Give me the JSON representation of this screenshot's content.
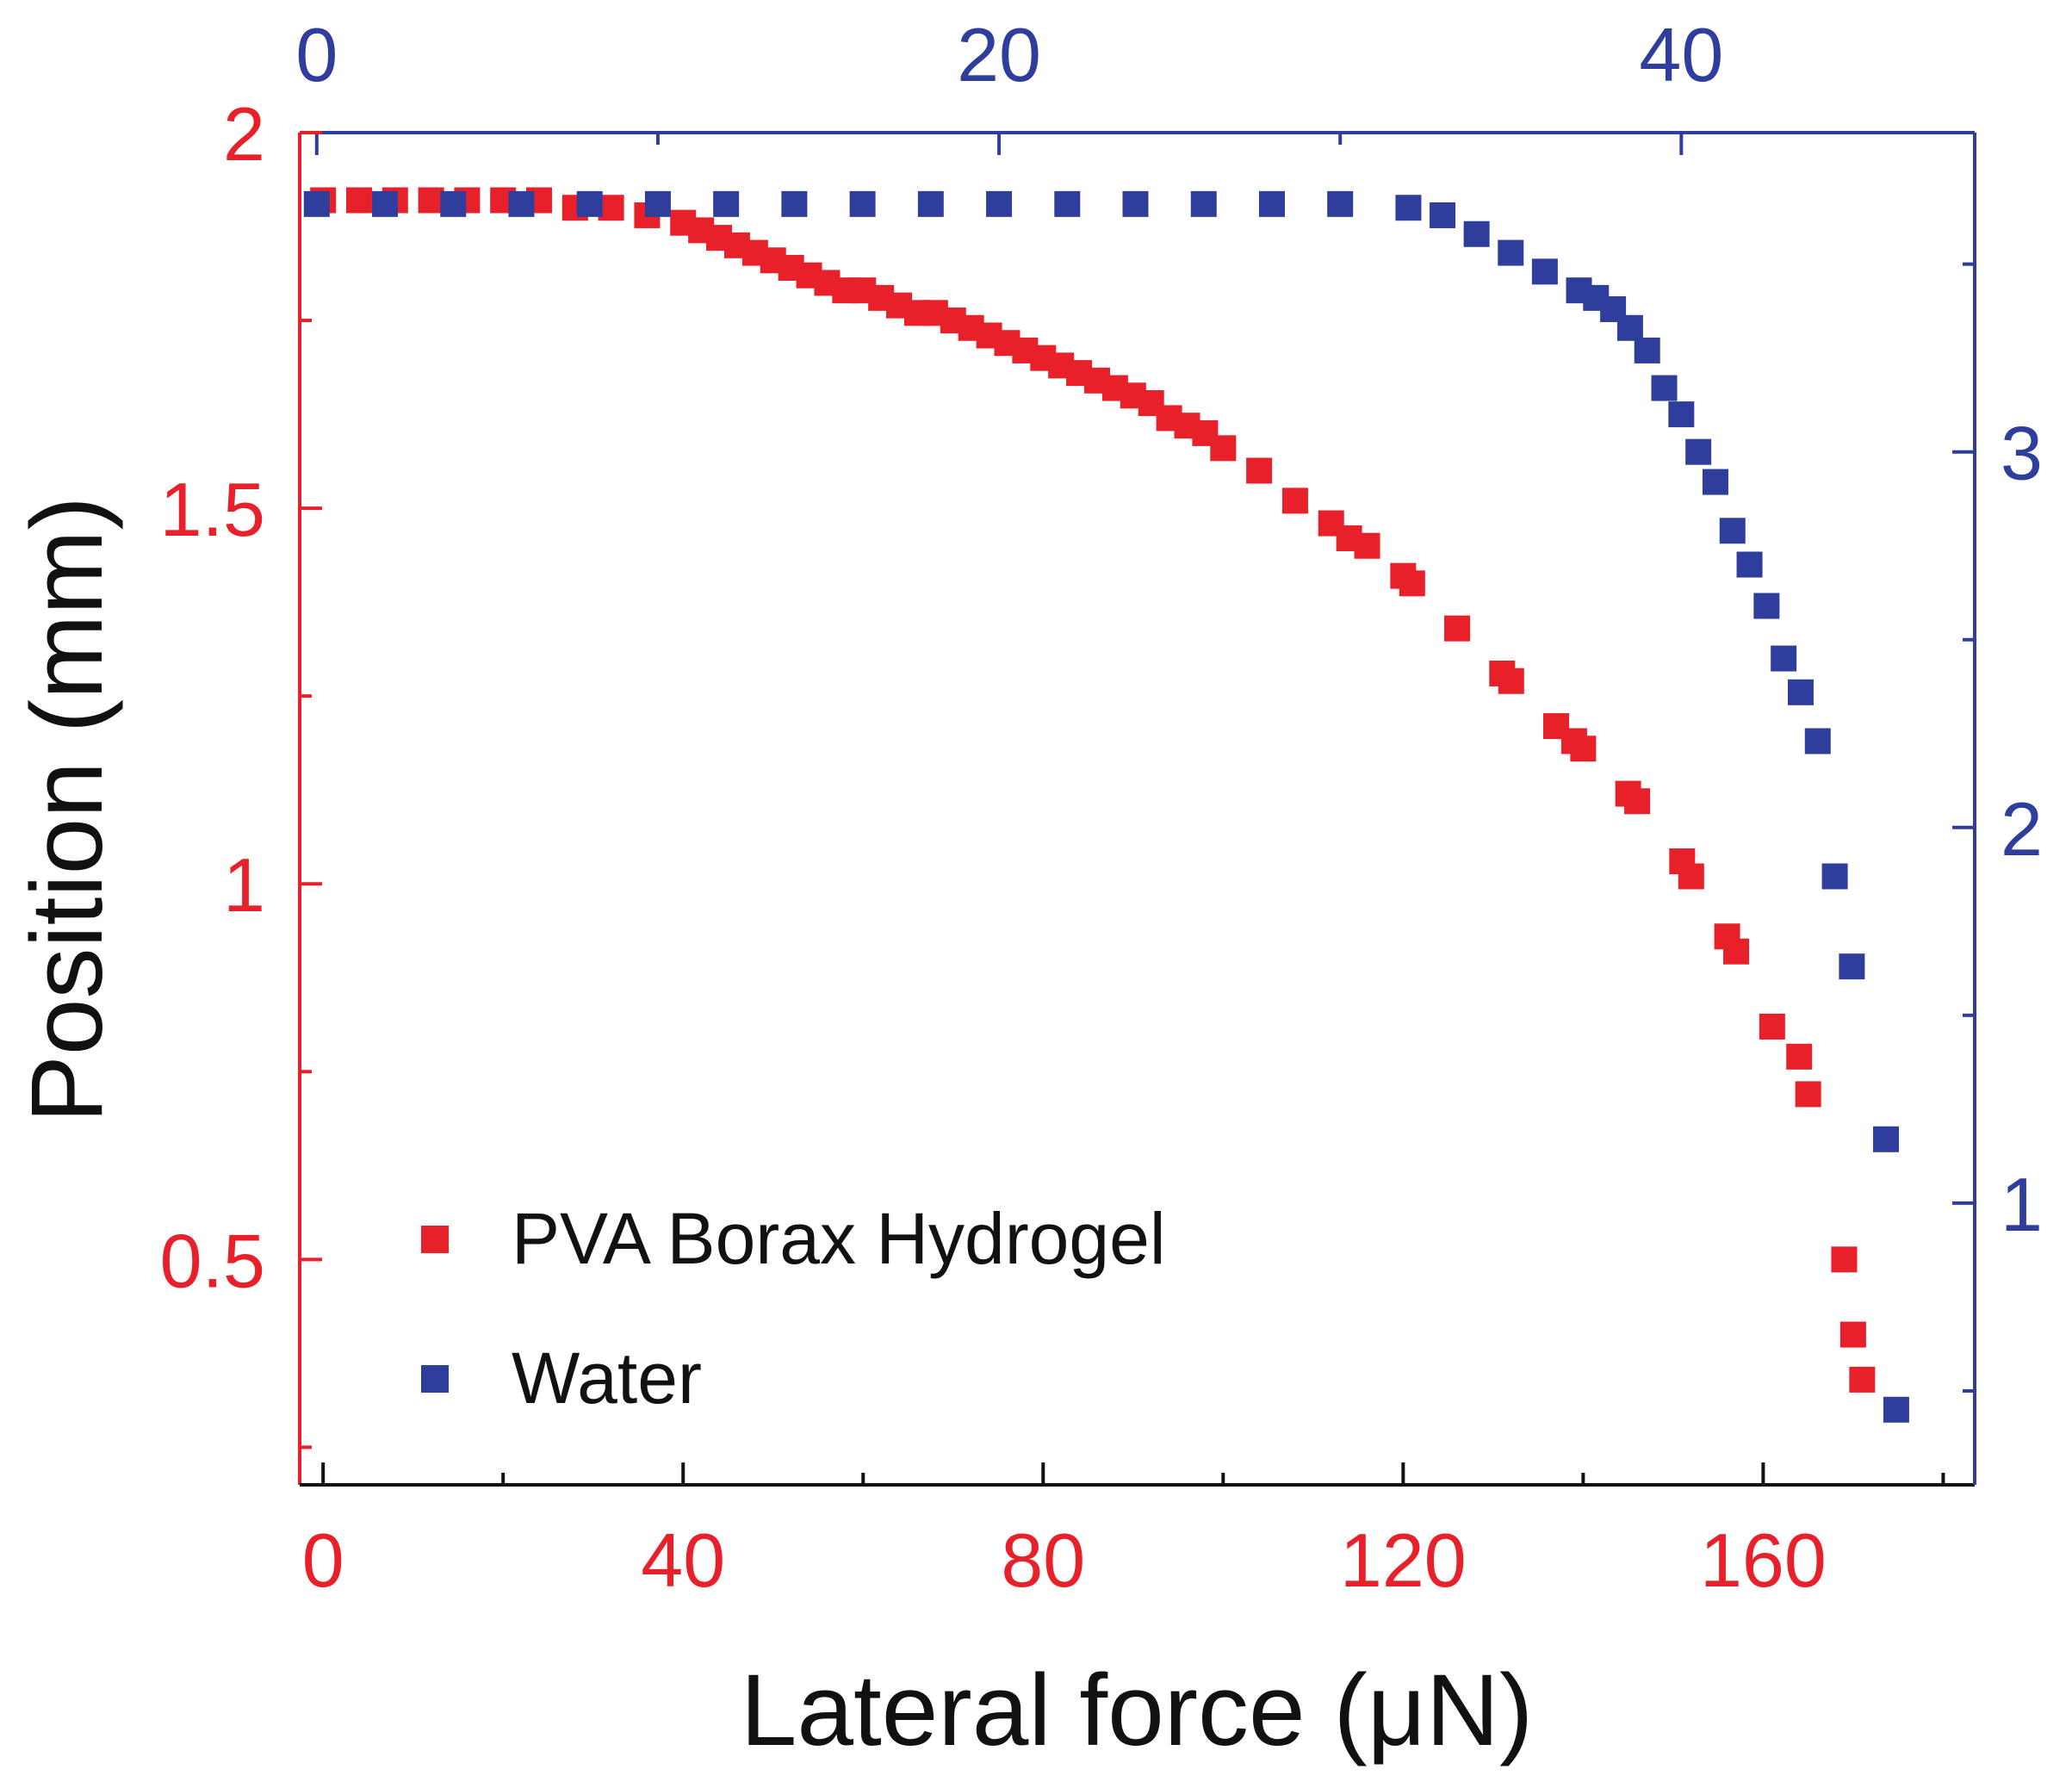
{
  "chart_data": {
    "type": "scatter",
    "title": "",
    "xlabel": "Lateral force (μN)",
    "ylabel": "Position (mm)",
    "axes": {
      "bottom_x": {
        "range": [
          -2.6,
          183.5
        ],
        "ticks": [
          0,
          40,
          80,
          120,
          160
        ],
        "tick_labels": [
          "0",
          "40",
          "80",
          "120",
          "160"
        ],
        "color": "#e8202a"
      },
      "top_x": {
        "range": [
          -0.5,
          48.6
        ],
        "ticks": [
          0,
          20,
          40
        ],
        "tick_labels": [
          "0",
          "20",
          "40"
        ],
        "color": "#2f3d9c"
      },
      "left_y": {
        "range": [
          0.2,
          2.0
        ],
        "ticks": [
          0.5,
          1.0,
          1.5,
          2.0
        ],
        "tick_labels": [
          "0.5",
          "1",
          "1.5",
          "2"
        ],
        "minor_ticks": [
          0.25,
          0.75,
          1.25,
          1.75
        ],
        "color": "#e8202a"
      },
      "right_y": {
        "range": [
          0.25,
          3.85
        ],
        "ticks": [
          1,
          2,
          3
        ],
        "tick_labels": [
          "1",
          "2",
          "3"
        ],
        "minor_ticks": [
          0.5,
          1.5,
          2.5,
          3.5
        ],
        "color": "#2f3d9c"
      }
    },
    "grid": false,
    "legend": {
      "position": "bottom-left"
    },
    "series": [
      {
        "name": "PVA Borax Hydrogel",
        "axes": "bottom-left",
        "color": "#e8202a",
        "x": [
          0,
          4,
          8,
          12,
          16,
          20,
          24,
          28,
          32,
          36,
          40,
          42,
          44,
          46,
          48,
          50,
          52,
          54,
          56,
          58,
          60,
          62,
          64,
          66,
          68,
          70,
          72,
          74,
          76,
          78,
          80,
          82,
          84,
          86,
          88,
          90,
          92,
          94,
          96,
          98,
          100,
          104,
          108,
          112,
          114,
          116,
          120,
          121,
          126,
          131,
          132,
          137,
          139,
          140,
          145,
          146,
          151,
          152,
          156,
          157,
          161,
          164,
          165,
          169,
          170,
          171
        ],
        "y": [
          1.91,
          1.91,
          1.91,
          1.91,
          1.91,
          1.91,
          1.91,
          1.9,
          1.9,
          1.89,
          1.88,
          1.87,
          1.86,
          1.85,
          1.84,
          1.83,
          1.82,
          1.81,
          1.8,
          1.79,
          1.79,
          1.78,
          1.77,
          1.76,
          1.76,
          1.75,
          1.74,
          1.73,
          1.72,
          1.71,
          1.7,
          1.69,
          1.68,
          1.67,
          1.66,
          1.65,
          1.64,
          1.62,
          1.61,
          1.6,
          1.58,
          1.55,
          1.51,
          1.48,
          1.46,
          1.45,
          1.41,
          1.4,
          1.34,
          1.28,
          1.27,
          1.21,
          1.19,
          1.18,
          1.12,
          1.11,
          1.03,
          1.01,
          0.93,
          0.91,
          0.81,
          0.77,
          0.72,
          0.5,
          0.4,
          0.34
        ]
      },
      {
        "name": "Water",
        "axes": "top-right",
        "color": "#2f3d9c",
        "x": [
          0,
          2,
          4,
          6,
          8,
          10,
          12,
          14,
          16,
          18,
          20,
          22,
          24,
          26,
          28,
          30,
          32,
          33,
          34,
          35,
          36,
          37,
          37.5,
          38,
          38.5,
          39,
          39.5,
          40,
          40.5,
          41,
          41.5,
          42,
          42.5,
          43,
          43.5,
          44,
          44.5,
          45,
          46,
          46.3
        ],
        "y": [
          3.66,
          3.66,
          3.66,
          3.66,
          3.66,
          3.66,
          3.66,
          3.66,
          3.66,
          3.66,
          3.66,
          3.66,
          3.66,
          3.66,
          3.66,
          3.66,
          3.65,
          3.63,
          3.58,
          3.53,
          3.48,
          3.43,
          3.41,
          3.38,
          3.33,
          3.27,
          3.17,
          3.1,
          3.0,
          2.92,
          2.79,
          2.7,
          2.59,
          2.45,
          2.36,
          2.23,
          1.87,
          1.63,
          1.17,
          0.45
        ]
      }
    ]
  }
}
